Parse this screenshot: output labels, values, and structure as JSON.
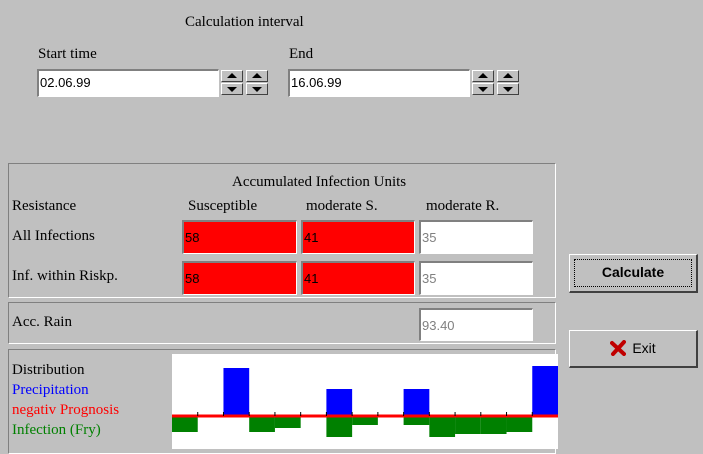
{
  "interval": {
    "title": "Calculation interval",
    "start_label": "Start time",
    "start": "02.06.99",
    "end_label": "End",
    "end": "16.06.99"
  },
  "infection": {
    "title": "Accumulated Infection Units",
    "row_header": "Resistance",
    "columns": [
      "Susceptible",
      "moderate S.",
      "moderate R."
    ],
    "rows": [
      {
        "label": "All Infections",
        "values": [
          58,
          41,
          35
        ]
      },
      {
        "label": "Inf. within Riskp.",
        "values": [
          58,
          41,
          35
        ]
      }
    ]
  },
  "rain": {
    "label": "Acc. Rain",
    "value": "93.40"
  },
  "distribution": {
    "title": "Distribution",
    "series": [
      {
        "name": "Precipitation",
        "color": "#0000ff",
        "values": [
          0,
          0,
          4.8,
          0,
          0,
          0,
          2.7,
          0,
          0,
          2.7,
          0,
          0,
          0,
          0,
          5.0
        ]
      },
      {
        "name": "negativ Prognosis",
        "color": "#ff0000"
      },
      {
        "name": "Infection (Fry)",
        "color": "#008000",
        "values": [
          1.6,
          0,
          0,
          1.6,
          1.2,
          0,
          2.1,
          0.9,
          0,
          0.9,
          2.1,
          1.8,
          1.8,
          1.6,
          0
        ]
      }
    ]
  },
  "buttons": {
    "calculate": "Calculate",
    "exit": "Exit"
  }
}
